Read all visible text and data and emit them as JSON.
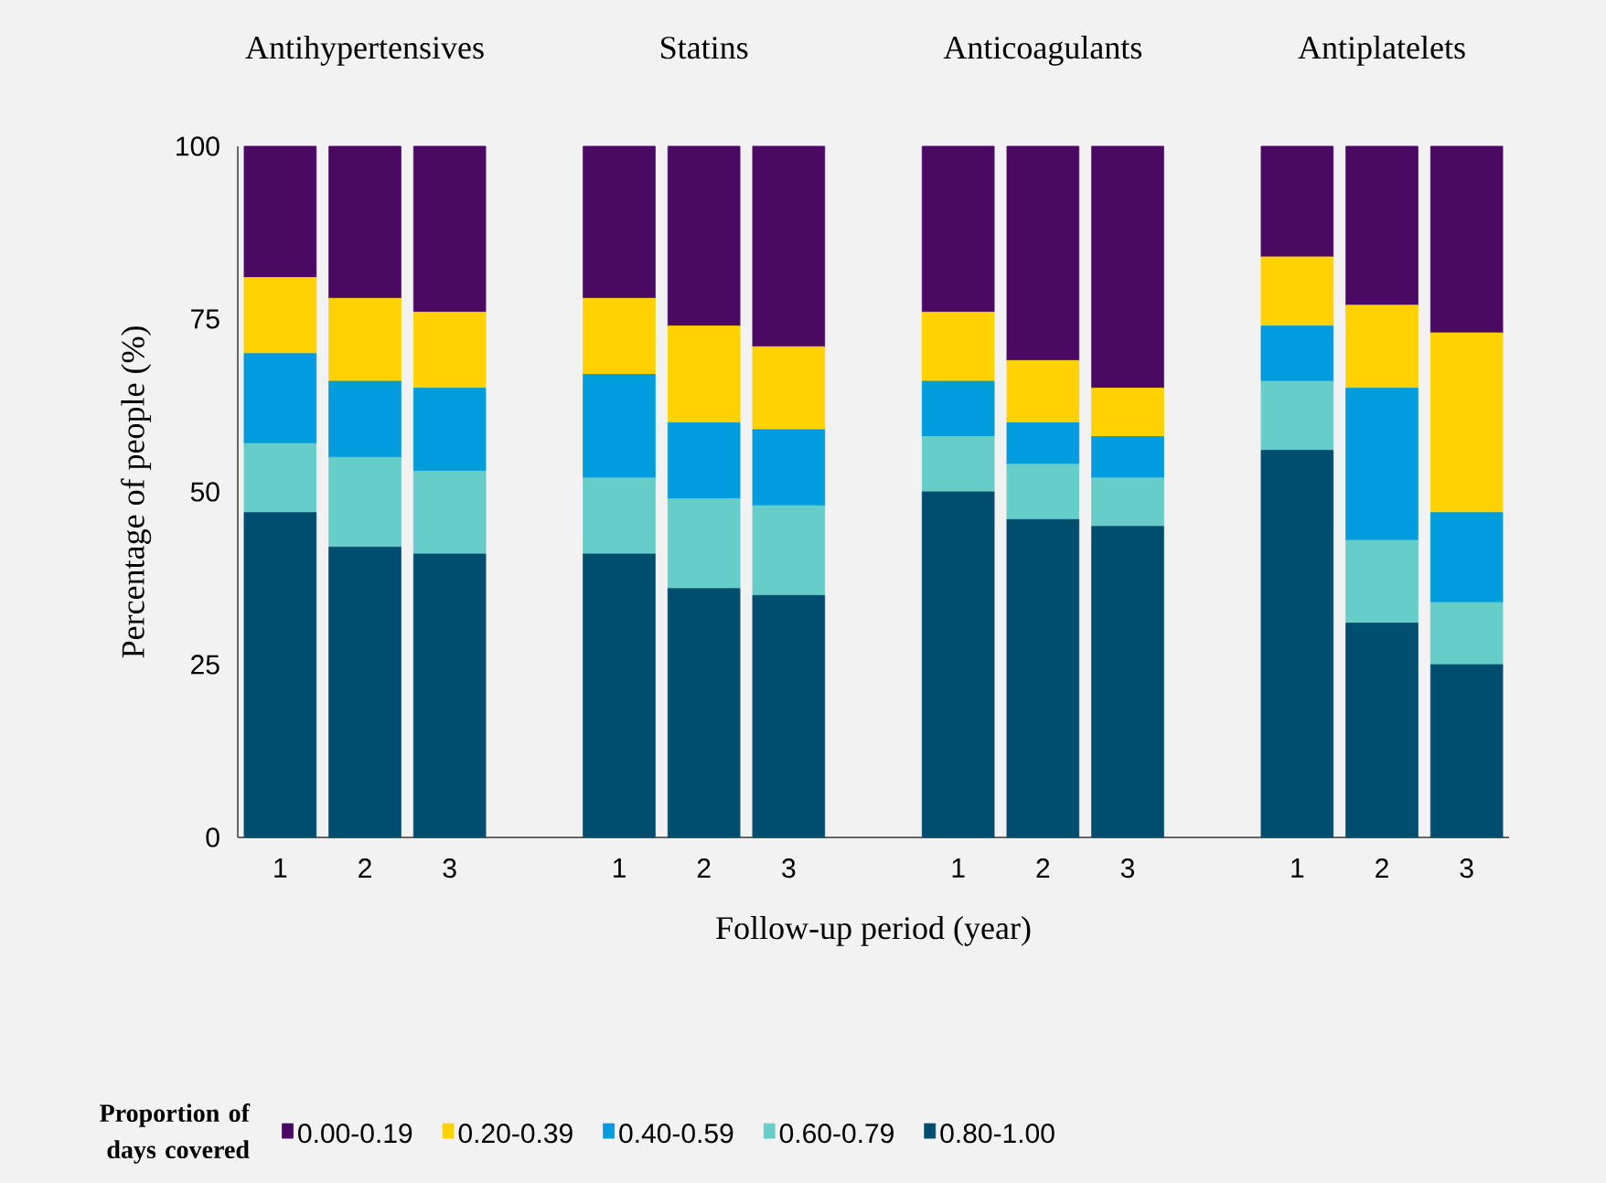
{
  "chart_data": {
    "type": "bar",
    "stacked": true,
    "annotations": [
      "Antihypertensives",
      "Statins",
      "Anticoagulants",
      "Antiplatelets"
    ],
    "xlabel": "Follow-up period (year)",
    "ylabel": "Percentage of people (%)",
    "legend_title": "Proportion of days covered",
    "categories": [
      "1",
      "2",
      "3",
      null,
      "1",
      "2",
      "3",
      null,
      "1",
      "2",
      "3",
      null,
      "1",
      "2",
      "3"
    ],
    "series": [
      {
        "name": "0.80-1.00",
        "color": "#004e6f",
        "values": [
          47,
          42,
          41,
          null,
          41,
          36,
          35,
          null,
          50,
          46,
          45,
          null,
          56,
          31,
          25
        ]
      },
      {
        "name": "0.60-0.79",
        "color": "#66cdc9",
        "values": [
          10,
          13,
          12,
          null,
          11,
          13,
          13,
          null,
          8,
          8,
          7,
          null,
          10,
          12,
          9
        ]
      },
      {
        "name": "0.40-0.59",
        "color": "#009cdc",
        "values": [
          13,
          11,
          12,
          null,
          15,
          11,
          11,
          null,
          8,
          6,
          6,
          null,
          8,
          22,
          13
        ]
      },
      {
        "name": "0.20-0.39",
        "color": "#ffd200",
        "values": [
          11,
          12,
          11,
          null,
          11,
          14,
          12,
          null,
          10,
          9,
          7,
          null,
          10,
          12,
          26
        ]
      },
      {
        "name": "0.00-0.19",
        "color": "#4a0a64",
        "values": [
          19,
          22,
          24,
          null,
          22,
          26,
          29,
          null,
          24,
          31,
          35,
          null,
          16,
          23,
          27
        ]
      }
    ],
    "ylim": [
      0,
      100
    ],
    "yticks": [
      0,
      25,
      50,
      75,
      100
    ],
    "legend": "bottom"
  }
}
